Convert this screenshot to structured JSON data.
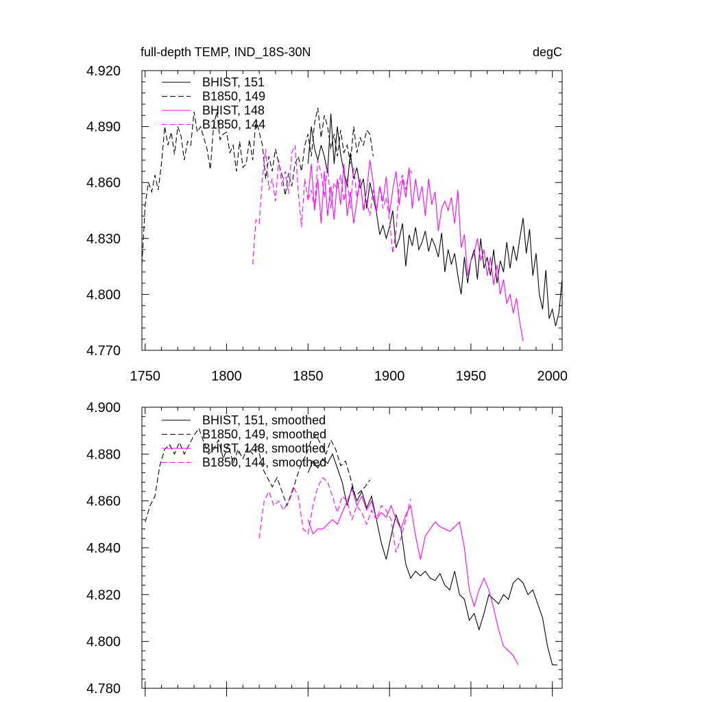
{
  "chart_data": [
    {
      "type": "line",
      "title": "full-depth TEMP, IND_18S-30N",
      "units": "degC",
      "xlim": [
        1748,
        2006
      ],
      "ylim": [
        4.77,
        4.92
      ],
      "x_ticks": [
        1750,
        1800,
        1850,
        1900,
        1950,
        2000
      ],
      "x_tick_labels": [
        "1750",
        "1800",
        "1850",
        "1900",
        "1950",
        "2000"
      ],
      "y_ticks": [
        4.77,
        4.8,
        4.83,
        4.86,
        4.89,
        4.92
      ],
      "y_tick_labels": [
        "4.770",
        "4.800",
        "4.830",
        "4.860",
        "4.890",
        "4.920"
      ],
      "legend_position": "top-left",
      "series": [
        {
          "name": "BHIST, 151",
          "color": "#000000",
          "dash": "solid",
          "x": [
            1850,
            1852,
            1854,
            1856,
            1858,
            1860,
            1862,
            1864,
            1866,
            1868,
            1870,
            1872,
            1874,
            1876,
            1878,
            1880,
            1882,
            1884,
            1886,
            1888,
            1890,
            1892,
            1894,
            1896,
            1898,
            1900,
            1902,
            1904,
            1906,
            1908,
            1910,
            1912,
            1914,
            1916,
            1918,
            1920,
            1922,
            1924,
            1926,
            1928,
            1930,
            1932,
            1934,
            1936,
            1938,
            1940,
            1942,
            1944,
            1946,
            1948,
            1950,
            1952,
            1954,
            1956,
            1958,
            1960,
            1962,
            1964,
            1966,
            1968,
            1970,
            1972,
            1974,
            1976,
            1978,
            1980,
            1982,
            1984,
            1986,
            1988,
            1990,
            1992,
            1994,
            1996,
            1998,
            2000,
            2002,
            2004,
            2006
          ],
          "y": [
            4.87,
            4.89,
            4.878,
            4.872,
            4.88,
            4.874,
            4.865,
            4.897,
            4.87,
            4.89,
            4.875,
            4.866,
            4.858,
            4.876,
            4.862,
            4.868,
            4.857,
            4.862,
            4.846,
            4.86,
            4.852,
            4.844,
            4.832,
            4.837,
            4.83,
            4.836,
            4.845,
            4.825,
            4.83,
            4.838,
            4.815,
            4.832,
            4.826,
            4.836,
            4.824,
            4.828,
            4.834,
            4.823,
            4.83,
            4.826,
            4.82,
            4.833,
            4.812,
            4.824,
            4.816,
            4.822,
            4.81,
            4.8,
            4.82,
            4.806,
            4.818,
            4.824,
            4.808,
            4.83,
            4.814,
            4.82,
            4.81,
            4.824,
            4.806,
            4.818,
            4.812,
            4.828,
            4.814,
            4.826,
            4.818,
            4.83,
            4.841,
            4.822,
            4.835,
            4.81,
            4.822,
            4.8,
            4.792,
            4.813,
            4.787,
            4.792,
            4.783,
            4.79,
            4.808
          ]
        },
        {
          "name": "B1850, 149",
          "color": "#000000",
          "dash": "dashed",
          "x": [
            1748,
            1750,
            1752,
            1754,
            1756,
            1758,
            1760,
            1762,
            1764,
            1766,
            1768,
            1770,
            1772,
            1774,
            1776,
            1778,
            1780,
            1782,
            1784,
            1786,
            1788,
            1790,
            1792,
            1794,
            1796,
            1798,
            1800,
            1802,
            1804,
            1806,
            1808,
            1810,
            1812,
            1814,
            1816,
            1818,
            1820,
            1822,
            1824,
            1826,
            1828,
            1830,
            1832,
            1834,
            1836,
            1838,
            1840,
            1842,
            1844,
            1846,
            1848,
            1850,
            1852,
            1854,
            1856,
            1858,
            1860,
            1862,
            1864,
            1866,
            1868,
            1870,
            1872,
            1874,
            1876,
            1878,
            1880,
            1882,
            1884,
            1886,
            1888,
            1890
          ],
          "y": [
            4.816,
            4.848,
            4.86,
            4.855,
            4.864,
            4.856,
            4.87,
            4.89,
            4.88,
            4.887,
            4.875,
            4.89,
            4.885,
            4.872,
            4.882,
            4.88,
            4.898,
            4.887,
            4.89,
            4.884,
            4.878,
            4.867,
            4.89,
            4.898,
            4.883,
            4.886,
            4.887,
            4.876,
            4.88,
            4.866,
            4.882,
            4.868,
            4.87,
            4.883,
            4.872,
            4.894,
            4.887,
            4.88,
            4.862,
            4.874,
            4.866,
            4.878,
            4.87,
            4.864,
            4.853,
            4.865,
            4.858,
            4.87,
            4.874,
            4.866,
            4.88,
            4.886,
            4.874,
            4.892,
            4.9,
            4.884,
            4.896,
            4.89,
            4.878,
            4.886,
            4.874,
            4.888,
            4.876,
            4.88,
            4.87,
            4.89,
            4.876,
            4.884,
            4.88,
            4.888,
            4.886,
            4.874
          ]
        },
        {
          "name": "BHIST, 148",
          "color": "#ff00ff",
          "dash": "solid",
          "x": [
            1850,
            1852,
            1854,
            1856,
            1858,
            1860,
            1862,
            1864,
            1866,
            1868,
            1870,
            1872,
            1874,
            1876,
            1878,
            1880,
            1882,
            1884,
            1886,
            1888,
            1890,
            1892,
            1894,
            1896,
            1898,
            1900,
            1902,
            1904,
            1906,
            1908,
            1910,
            1912,
            1914,
            1916,
            1918,
            1920,
            1922,
            1924,
            1926,
            1928,
            1930,
            1932,
            1934,
            1936,
            1938,
            1940,
            1942,
            1944,
            1946,
            1948,
            1950,
            1952,
            1954,
            1956,
            1958,
            1960,
            1962,
            1964,
            1966,
            1968,
            1970,
            1972,
            1974,
            1976,
            1978,
            1980,
            1982
          ],
          "y": [
            4.852,
            4.87,
            4.845,
            4.862,
            4.838,
            4.866,
            4.842,
            4.858,
            4.84,
            4.862,
            4.848,
            4.87,
            4.842,
            4.855,
            4.838,
            4.85,
            4.862,
            4.845,
            4.856,
            4.872,
            4.86,
            4.844,
            4.858,
            4.85,
            4.863,
            4.843,
            4.856,
            4.866,
            4.848,
            4.862,
            4.852,
            4.868,
            4.846,
            4.862,
            4.85,
            4.858,
            4.842,
            4.862,
            4.848,
            4.855,
            4.834,
            4.846,
            4.85,
            4.845,
            4.852,
            4.838,
            4.856,
            4.825,
            4.832,
            4.81,
            4.818,
            4.822,
            4.83,
            4.818,
            4.824,
            4.81,
            4.82,
            4.805,
            4.816,
            4.8,
            4.808,
            4.795,
            4.8,
            4.79,
            4.798,
            4.785,
            4.775
          ]
        },
        {
          "name": "B1850, 144",
          "color": "#ff00ff",
          "dash": "dashed",
          "x": [
            1816,
            1818,
            1820,
            1822,
            1824,
            1826,
            1828,
            1830,
            1832,
            1834,
            1836,
            1838,
            1840,
            1842,
            1844,
            1846,
            1848,
            1850,
            1852,
            1854,
            1856,
            1858,
            1860,
            1862,
            1864,
            1866,
            1868,
            1870,
            1872,
            1874,
            1876,
            1878,
            1880,
            1882,
            1884,
            1886,
            1888,
            1890,
            1892,
            1894,
            1896,
            1898,
            1900,
            1902,
            1904,
            1906,
            1908,
            1910,
            1912,
            1914
          ],
          "y": [
            4.816,
            4.84,
            4.838,
            4.862,
            4.878,
            4.856,
            4.862,
            4.85,
            4.872,
            4.858,
            4.866,
            4.854,
            4.876,
            4.88,
            4.855,
            4.836,
            4.862,
            4.85,
            4.856,
            4.846,
            4.872,
            4.865,
            4.852,
            4.87,
            4.846,
            4.86,
            4.856,
            4.864,
            4.85,
            4.862,
            4.846,
            4.868,
            4.852,
            4.862,
            4.845,
            4.85,
            4.842,
            4.856,
            4.845,
            4.858,
            4.846,
            4.852,
            4.84,
            4.822,
            4.834,
            4.858,
            4.864,
            4.856,
            4.867,
            4.865
          ]
        }
      ]
    },
    {
      "type": "line",
      "xlim": [
        1748,
        2006
      ],
      "ylim": [
        4.78,
        4.9
      ],
      "x_ticks": [
        1750,
        1800,
        1850,
        1900,
        1950,
        2000
      ],
      "y_ticks": [
        4.78,
        4.8,
        4.82,
        4.84,
        4.86,
        4.88,
        4.9
      ],
      "y_tick_labels": [
        "4.780",
        "4.800",
        "4.820",
        "4.840",
        "4.860",
        "4.880",
        "4.900"
      ],
      "legend_position": "top-left",
      "series": [
        {
          "name": "BHIST, 151, smoothed",
          "color": "#000000",
          "dash": "solid",
          "x": [
            1850,
            1853,
            1856,
            1859,
            1862,
            1865,
            1868,
            1871,
            1874,
            1877,
            1880,
            1883,
            1886,
            1889,
            1892,
            1895,
            1898,
            1901,
            1904,
            1907,
            1910,
            1913,
            1916,
            1919,
            1922,
            1925,
            1928,
            1931,
            1934,
            1937,
            1940,
            1943,
            1946,
            1949,
            1952,
            1955,
            1958,
            1961,
            1964,
            1967,
            1970,
            1973,
            1976,
            1979,
            1982,
            1985,
            1988,
            1991,
            1994,
            1997,
            2000,
            2003
          ],
          "y": [
            4.872,
            4.877,
            4.874,
            4.878,
            4.876,
            4.88,
            4.874,
            4.868,
            4.858,
            4.866,
            4.86,
            4.864,
            4.857,
            4.862,
            4.852,
            4.842,
            4.835,
            4.845,
            4.854,
            4.848,
            4.833,
            4.827,
            4.83,
            4.828,
            4.83,
            4.827,
            4.826,
            4.829,
            4.824,
            4.822,
            4.83,
            4.82,
            4.818,
            4.809,
            4.812,
            4.805,
            4.812,
            4.82,
            4.818,
            4.816,
            4.82,
            4.818,
            4.825,
            4.827,
            4.825,
            4.82,
            4.822,
            4.816,
            4.81,
            4.798,
            4.79,
            4.79
          ]
        },
        {
          "name": "B1850, 149, smoothed",
          "color": "#000000",
          "dash": "dashed",
          "x": [
            1750,
            1753,
            1756,
            1759,
            1762,
            1765,
            1768,
            1771,
            1774,
            1777,
            1780,
            1783,
            1786,
            1789,
            1792,
            1795,
            1798,
            1801,
            1804,
            1807,
            1810,
            1813,
            1816,
            1819,
            1822,
            1825,
            1828,
            1831,
            1834,
            1837,
            1840,
            1843,
            1846,
            1849,
            1852,
            1855,
            1858,
            1861,
            1864,
            1867,
            1870,
            1873,
            1876,
            1879,
            1882,
            1885,
            1888
          ],
          "y": [
            4.851,
            4.858,
            4.862,
            4.875,
            4.882,
            4.884,
            4.88,
            4.885,
            4.88,
            4.884,
            4.888,
            4.891,
            4.885,
            4.88,
            4.882,
            4.886,
            4.878,
            4.884,
            4.876,
            4.882,
            4.878,
            4.883,
            4.88,
            4.884,
            4.874,
            4.87,
            4.866,
            4.87,
            4.864,
            4.858,
            4.863,
            4.87,
            4.876,
            4.88,
            4.886,
            4.888,
            4.884,
            4.88,
            4.886,
            4.882,
            4.875,
            4.877,
            4.87,
            4.862,
            4.864,
            4.866,
            4.869
          ]
        },
        {
          "name": "BHIST, 148, smoothed",
          "color": "#ff00ff",
          "dash": "solid",
          "x": [
            1850,
            1853,
            1856,
            1859,
            1862,
            1865,
            1868,
            1871,
            1874,
            1877,
            1880,
            1883,
            1886,
            1889,
            1892,
            1895,
            1898,
            1901,
            1904,
            1907,
            1910,
            1913,
            1916,
            1919,
            1922,
            1925,
            1928,
            1931,
            1934,
            1937,
            1940,
            1943,
            1946,
            1949,
            1952,
            1955,
            1958,
            1961,
            1964,
            1967,
            1970,
            1973,
            1976,
            1979
          ],
          "y": [
            4.852,
            4.846,
            4.848,
            4.848,
            4.85,
            4.852,
            4.85,
            4.855,
            4.86,
            4.865,
            4.858,
            4.862,
            4.856,
            4.86,
            4.852,
            4.855,
            4.853,
            4.858,
            4.852,
            4.848,
            4.854,
            4.858,
            4.845,
            4.835,
            4.845,
            4.848,
            4.851,
            4.849,
            4.848,
            4.847,
            4.849,
            4.851,
            4.84,
            4.822,
            4.815,
            4.822,
            4.827,
            4.822,
            4.814,
            4.805,
            4.798,
            4.796,
            4.794,
            4.79
          ]
        },
        {
          "name": "B1850, 144, smoothed",
          "color": "#ff00ff",
          "dash": "dashed",
          "x": [
            1820,
            1823,
            1826,
            1829,
            1832,
            1835,
            1838,
            1841,
            1844,
            1847,
            1850,
            1853,
            1856,
            1859,
            1862,
            1865,
            1868,
            1871,
            1874,
            1877,
            1880,
            1883,
            1886,
            1889,
            1892,
            1895,
            1898,
            1901,
            1904,
            1907,
            1910,
            1913
          ],
          "y": [
            4.844,
            4.86,
            4.864,
            4.858,
            4.86,
            4.856,
            4.86,
            4.866,
            4.862,
            4.848,
            4.846,
            4.858,
            4.866,
            4.87,
            4.868,
            4.862,
            4.855,
            4.862,
            4.86,
            4.852,
            4.858,
            4.855,
            4.85,
            4.856,
            4.852,
            4.858,
            4.856,
            4.852,
            4.838,
            4.844,
            4.852,
            4.861
          ]
        }
      ]
    }
  ]
}
